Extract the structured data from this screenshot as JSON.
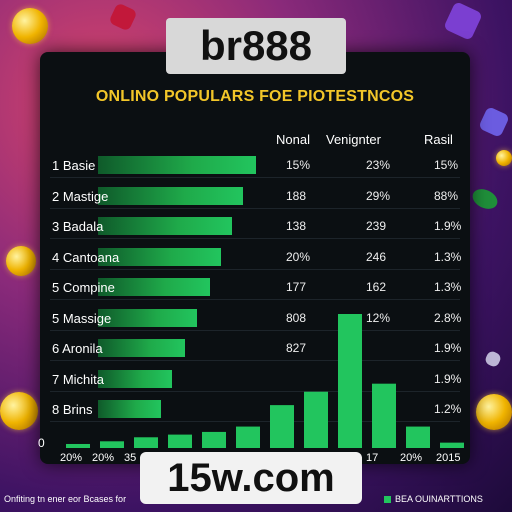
{
  "brand": "br888",
  "domain_text": "15w.com",
  "chart_data": {
    "type": "table",
    "title": "ONLINO POPULARS FOE PIOTESTNCOS",
    "columns": [
      "Nonal",
      "Venignter",
      "Rasil"
    ],
    "rows": [
      {
        "label": "1 Basie",
        "bar": 0.85,
        "values": [
          "15%",
          "23%",
          "15%"
        ]
      },
      {
        "label": "2 Mastige",
        "bar": 0.78,
        "values": [
          "188",
          "29%",
          "88%"
        ]
      },
      {
        "label": "3 Badala",
        "bar": 0.72,
        "values": [
          "138",
          "239",
          "1.9%"
        ]
      },
      {
        "label": "4 Cantoana",
        "bar": 0.66,
        "values": [
          "20%",
          "246",
          "1.3%"
        ]
      },
      {
        "label": "5 Compine",
        "bar": 0.6,
        "values": [
          "177",
          "162",
          "1.3%"
        ]
      },
      {
        "label": "5 Massige",
        "bar": 0.53,
        "values": [
          "808",
          "12%",
          "2.8%"
        ]
      },
      {
        "label": "6 Aronila",
        "bar": 0.47,
        "values": [
          "827",
          "",
          "1.9%"
        ]
      },
      {
        "label": "7 Michita",
        "bar": 0.4,
        "values": [
          "",
          "",
          "1.9%"
        ]
      },
      {
        "label": "8 Brins",
        "bar": 0.34,
        "values": [
          "",
          "",
          "1.2%"
        ]
      }
    ],
    "column_chart": {
      "values": [
        3,
        5,
        8,
        10,
        12,
        16,
        32,
        42,
        100,
        48,
        16,
        4
      ],
      "ylim": [
        0,
        100
      ],
      "zero_label": "0"
    },
    "x_tick_labels": [
      "20%",
      "20%",
      "35",
      "17",
      "20%",
      "2015"
    ],
    "legend_label": "BEA OUINARTTIONS",
    "footnote": "Onfiting tn ener eor Bcases for"
  }
}
